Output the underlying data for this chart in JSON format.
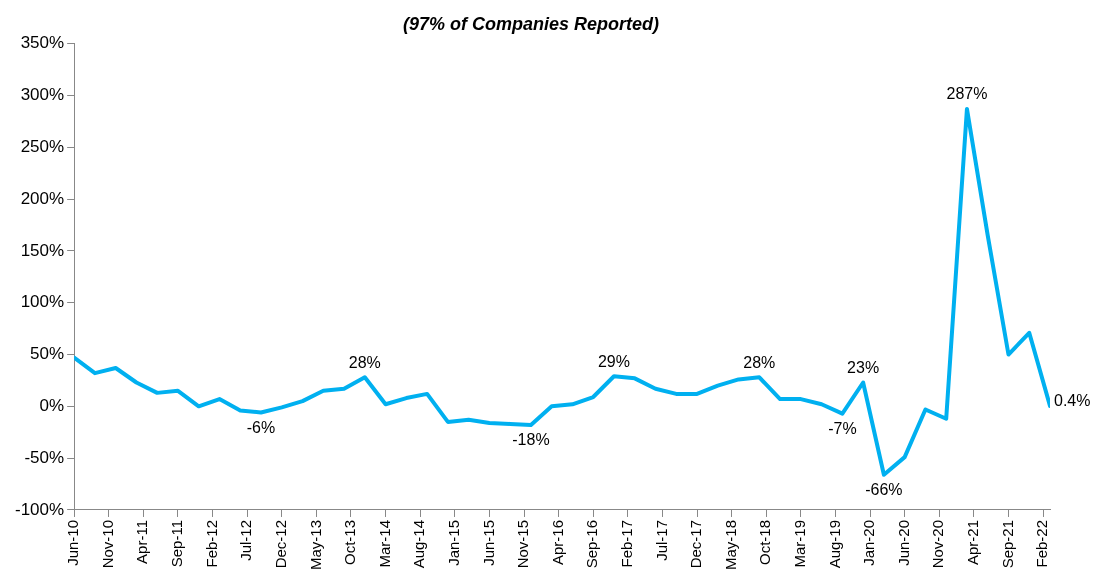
{
  "chart_data": {
    "type": "line",
    "title": "(97% of Companies Reported)",
    "x": [
      "2010-06",
      "2010-09",
      "2010-12",
      "2011-03",
      "2011-06",
      "2011-09",
      "2011-12",
      "2012-03",
      "2012-06",
      "2012-09",
      "2012-12",
      "2013-03",
      "2013-06",
      "2013-09",
      "2013-12",
      "2014-03",
      "2014-06",
      "2014-09",
      "2014-12",
      "2015-03",
      "2015-06",
      "2015-09",
      "2015-12",
      "2016-03",
      "2016-06",
      "2016-09",
      "2016-12",
      "2017-03",
      "2017-06",
      "2017-09",
      "2017-12",
      "2018-03",
      "2018-06",
      "2018-09",
      "2018-12",
      "2019-03",
      "2019-06",
      "2019-09",
      "2019-12",
      "2020-03",
      "2020-06",
      "2020-09",
      "2020-12",
      "2021-03",
      "2021-06",
      "2021-09",
      "2021-12",
      "2022-03"
    ],
    "series": [
      {
        "color": "#00b0f0",
        "values": [
          47,
          32,
          37,
          23,
          13,
          15,
          0,
          7,
          -4,
          -6,
          -1,
          5,
          15,
          17,
          28,
          2,
          8,
          12,
          -15,
          -13,
          -16,
          -17,
          -18,
          0,
          2,
          9,
          29,
          27,
          17,
          12,
          12,
          20,
          26,
          28,
          7,
          7,
          2,
          -7,
          23,
          -66,
          -49,
          -3,
          -12,
          287,
          165,
          50,
          71,
          0.4
        ],
        "value_labels": [
          null,
          null,
          null,
          null,
          null,
          null,
          null,
          null,
          null,
          "-6%",
          null,
          null,
          null,
          null,
          "28%",
          null,
          null,
          null,
          null,
          null,
          null,
          null,
          "-18%",
          null,
          null,
          null,
          "29%",
          null,
          null,
          null,
          null,
          null,
          null,
          "28%",
          null,
          null,
          null,
          "-7%",
          "23%",
          "-66%",
          null,
          null,
          null,
          "287%",
          null,
          null,
          null,
          "0.4%"
        ]
      }
    ],
    "xlim": [
      "2010-06",
      "2022-03"
    ],
    "xticks": [
      {
        "value": "2010-06",
        "label": "Jun-10"
      },
      {
        "value": "2010-11",
        "label": "Nov-10"
      },
      {
        "value": "2011-04",
        "label": "Apr-11"
      },
      {
        "value": "2011-09",
        "label": "Sep-11"
      },
      {
        "value": "2012-02",
        "label": "Feb-12"
      },
      {
        "value": "2012-07",
        "label": "Jul-12"
      },
      {
        "value": "2012-12",
        "label": "Dec-12"
      },
      {
        "value": "2013-05",
        "label": "May-13"
      },
      {
        "value": "2013-10",
        "label": "Oct-13"
      },
      {
        "value": "2014-03",
        "label": "Mar-14"
      },
      {
        "value": "2014-08",
        "label": "Aug-14"
      },
      {
        "value": "2015-01",
        "label": "Jan-15"
      },
      {
        "value": "2015-06",
        "label": "Jun-15"
      },
      {
        "value": "2015-11",
        "label": "Nov-15"
      },
      {
        "value": "2016-04",
        "label": "Apr-16"
      },
      {
        "value": "2016-09",
        "label": "Sep-16"
      },
      {
        "value": "2017-02",
        "label": "Feb-17"
      },
      {
        "value": "2017-07",
        "label": "Jul-17"
      },
      {
        "value": "2017-12",
        "label": "Dec-17"
      },
      {
        "value": "2018-05",
        "label": "May-18"
      },
      {
        "value": "2018-10",
        "label": "Oct-18"
      },
      {
        "value": "2019-03",
        "label": "Mar-19"
      },
      {
        "value": "2019-08",
        "label": "Aug-19"
      },
      {
        "value": "2020-01",
        "label": "Jan-20"
      },
      {
        "value": "2020-06",
        "label": "Jun-20"
      },
      {
        "value": "2020-11",
        "label": "Nov-20"
      },
      {
        "value": "2021-04",
        "label": "Apr-21"
      },
      {
        "value": "2021-09",
        "label": "Sep-21"
      },
      {
        "value": "2022-02",
        "label": "Feb-22"
      }
    ],
    "ylim": [
      -100,
      350
    ],
    "yticks": [
      {
        "value": -100,
        "label": "-100%"
      },
      {
        "value": -50,
        "label": "-50%"
      },
      {
        "value": 0,
        "label": "0%"
      },
      {
        "value": 50,
        "label": "50%"
      },
      {
        "value": 100,
        "label": "100%"
      },
      {
        "value": 150,
        "label": "150%"
      },
      {
        "value": 200,
        "label": "200%"
      },
      {
        "value": 250,
        "label": "250%"
      },
      {
        "value": 300,
        "label": "300%"
      },
      {
        "value": 350,
        "label": "350%"
      }
    ],
    "grid": false,
    "legend": false,
    "marker": "none",
    "line_style": "solid"
  }
}
